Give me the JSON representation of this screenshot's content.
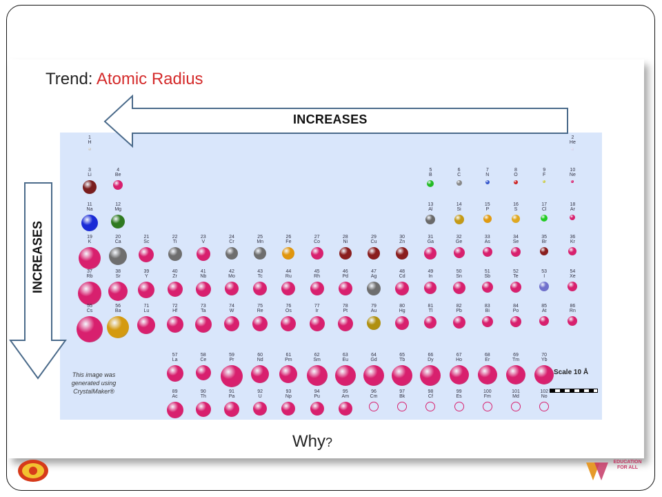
{
  "slide": {
    "title_prefix": "Trend: ",
    "title_accent": "Atomic Radius",
    "horizontal_arrow_label": "INCREASES",
    "vertical_arrow_label": "INCREASES",
    "credit": "This image was generated using CrystalMaker®",
    "scale_label": "Scale 10 Å",
    "question": "Why",
    "question_mark": "?"
  },
  "colors": {
    "magenta": "#d8206e",
    "title_accent": "#d42a2a",
    "table_bg": "#d9e6fb"
  },
  "elements": [
    {
      "n": "1",
      "s": "H",
      "p": 1,
      "g": 1,
      "r": 2,
      "c": "#cfcfcf"
    },
    {
      "n": "2",
      "s": "He",
      "p": 1,
      "g": 18,
      "r": 2,
      "c": "#d8d8f0"
    },
    {
      "n": "3",
      "s": "Li",
      "p": 2,
      "g": 1,
      "r": 10,
      "c": "#7a1e1e"
    },
    {
      "n": "4",
      "s": "Be",
      "p": 2,
      "g": 2,
      "r": 7,
      "c": "#d8206e"
    },
    {
      "n": "5",
      "s": "B",
      "p": 2,
      "g": 13,
      "r": 5,
      "c": "#22bb22"
    },
    {
      "n": "6",
      "s": "C",
      "p": 2,
      "g": 14,
      "r": 4,
      "c": "#888888"
    },
    {
      "n": "7",
      "s": "N",
      "p": 2,
      "g": 15,
      "r": 3,
      "c": "#3355cc"
    },
    {
      "n": "8",
      "s": "O",
      "p": 2,
      "g": 16,
      "r": 3,
      "c": "#cc2222"
    },
    {
      "n": "9",
      "s": "F",
      "p": 2,
      "g": 17,
      "r": 2,
      "c": "#cccc44"
    },
    {
      "n": "10",
      "s": "Ne",
      "p": 2,
      "g": 18,
      "r": 2,
      "c": "#d8206e"
    },
    {
      "n": "11",
      "s": "Na",
      "p": 3,
      "g": 1,
      "r": 12,
      "c": "#1a2bd6"
    },
    {
      "n": "12",
      "s": "Mg",
      "p": 3,
      "g": 2,
      "r": 10,
      "c": "#2f7a20"
    },
    {
      "n": "13",
      "s": "Al",
      "p": 3,
      "g": 13,
      "r": 7,
      "c": "#6a6a6a"
    },
    {
      "n": "14",
      "s": "Si",
      "p": 3,
      "g": 14,
      "r": 7,
      "c": "#c49a16"
    },
    {
      "n": "15",
      "s": "P",
      "p": 3,
      "g": 15,
      "r": 6,
      "c": "#e09a10"
    },
    {
      "n": "16",
      "s": "S",
      "p": 3,
      "g": 16,
      "r": 6,
      "c": "#e0a820"
    },
    {
      "n": "17",
      "s": "Cl",
      "p": 3,
      "g": 17,
      "r": 5,
      "c": "#22cc22"
    },
    {
      "n": "18",
      "s": "Ar",
      "p": 3,
      "g": 18,
      "r": 4,
      "c": "#d8206e"
    },
    {
      "n": "19",
      "s": "K",
      "p": 4,
      "g": 1,
      "r": 16,
      "c": "#d8206e"
    },
    {
      "n": "20",
      "s": "Ca",
      "p": 4,
      "g": 2,
      "r": 13,
      "c": "#6e6e6e"
    },
    {
      "n": "21",
      "s": "Sc",
      "p": 4,
      "g": 3,
      "r": 11,
      "c": "#d8206e"
    },
    {
      "n": "22",
      "s": "Ti",
      "p": 4,
      "g": 4,
      "r": 10,
      "c": "#6e6e6e"
    },
    {
      "n": "23",
      "s": "V",
      "p": 4,
      "g": 5,
      "r": 10,
      "c": "#d8206e"
    },
    {
      "n": "24",
      "s": "Cr",
      "p": 4,
      "g": 6,
      "r": 9,
      "c": "#6e6e6e"
    },
    {
      "n": "25",
      "s": "Mn",
      "p": 4,
      "g": 7,
      "r": 9,
      "c": "#6e6e6e"
    },
    {
      "n": "26",
      "s": "Fe",
      "p": 4,
      "g": 8,
      "r": 9,
      "c": "#e0960e"
    },
    {
      "n": "27",
      "s": "Co",
      "p": 4,
      "g": 9,
      "r": 9,
      "c": "#d8206e"
    },
    {
      "n": "28",
      "s": "Ni",
      "p": 4,
      "g": 10,
      "r": 9,
      "c": "#8a1e1e"
    },
    {
      "n": "29",
      "s": "Cu",
      "p": 4,
      "g": 11,
      "r": 9,
      "c": "#8a1e1e"
    },
    {
      "n": "30",
      "s": "Zn",
      "p": 4,
      "g": 12,
      "r": 9,
      "c": "#8a1e1e"
    },
    {
      "n": "31",
      "s": "Ga",
      "p": 4,
      "g": 13,
      "r": 9,
      "c": "#d8206e"
    },
    {
      "n": "32",
      "s": "Ge",
      "p": 4,
      "g": 14,
      "r": 8,
      "c": "#d8206e"
    },
    {
      "n": "33",
      "s": "As",
      "p": 4,
      "g": 15,
      "r": 7,
      "c": "#d8206e"
    },
    {
      "n": "34",
      "s": "Se",
      "p": 4,
      "g": 16,
      "r": 7,
      "c": "#d8206e"
    },
    {
      "n": "35",
      "s": "Br",
      "p": 4,
      "g": 17,
      "r": 6,
      "c": "#8a1e1e"
    },
    {
      "n": "36",
      "s": "Kr",
      "p": 4,
      "g": 18,
      "r": 6,
      "c": "#d8206e"
    },
    {
      "n": "37",
      "s": "Rb",
      "p": 5,
      "g": 1,
      "r": 17,
      "c": "#d8206e"
    },
    {
      "n": "38",
      "s": "Sr",
      "p": 5,
      "g": 2,
      "r": 14,
      "c": "#d8206e"
    },
    {
      "n": "39",
      "s": "Y",
      "p": 5,
      "g": 3,
      "r": 12,
      "c": "#d8206e"
    },
    {
      "n": "40",
      "s": "Zr",
      "p": 5,
      "g": 4,
      "r": 11,
      "c": "#d8206e"
    },
    {
      "n": "41",
      "s": "Nb",
      "p": 5,
      "g": 5,
      "r": 11,
      "c": "#d8206e"
    },
    {
      "n": "42",
      "s": "Mo",
      "p": 5,
      "g": 6,
      "r": 10,
      "c": "#d8206e"
    },
    {
      "n": "43",
      "s": "Tc",
      "p": 5,
      "g": 7,
      "r": 10,
      "c": "#d8206e"
    },
    {
      "n": "44",
      "s": "Ru",
      "p": 5,
      "g": 8,
      "r": 10,
      "c": "#d8206e"
    },
    {
      "n": "45",
      "s": "Rh",
      "p": 5,
      "g": 9,
      "r": 10,
      "c": "#d8206e"
    },
    {
      "n": "46",
      "s": "Pd",
      "p": 5,
      "g": 10,
      "r": 10,
      "c": "#d8206e"
    },
    {
      "n": "47",
      "s": "Ag",
      "p": 5,
      "g": 11,
      "r": 10,
      "c": "#6e6e6e"
    },
    {
      "n": "48",
      "s": "Cd",
      "p": 5,
      "g": 12,
      "r": 10,
      "c": "#d8206e"
    },
    {
      "n": "49",
      "s": "In",
      "p": 5,
      "g": 13,
      "r": 9,
      "c": "#d8206e"
    },
    {
      "n": "50",
      "s": "Sn",
      "p": 5,
      "g": 14,
      "r": 9,
      "c": "#d8206e"
    },
    {
      "n": "51",
      "s": "Sb",
      "p": 5,
      "g": 15,
      "r": 8,
      "c": "#d8206e"
    },
    {
      "n": "52",
      "s": "Te",
      "p": 5,
      "g": 16,
      "r": 8,
      "c": "#d8206e"
    },
    {
      "n": "53",
      "s": "I",
      "p": 5,
      "g": 17,
      "r": 7,
      "c": "#7070cc"
    },
    {
      "n": "54",
      "s": "Xe",
      "p": 5,
      "g": 18,
      "r": 7,
      "c": "#d8206e"
    },
    {
      "n": "55",
      "s": "Cs",
      "p": 6,
      "g": 1,
      "r": 19,
      "c": "#d8206e"
    },
    {
      "n": "56",
      "s": "Ba",
      "p": 6,
      "g": 2,
      "r": 16,
      "c": "#d49a10"
    },
    {
      "n": "71",
      "s": "Lu",
      "p": 6,
      "g": 3,
      "r": 13,
      "c": "#d8206e"
    },
    {
      "n": "72",
      "s": "Hf",
      "p": 6,
      "g": 4,
      "r": 12,
      "c": "#d8206e"
    },
    {
      "n": "73",
      "s": "Ta",
      "p": 6,
      "g": 5,
      "r": 12,
      "c": "#d8206e"
    },
    {
      "n": "74",
      "s": "W",
      "p": 6,
      "g": 6,
      "r": 11,
      "c": "#d8206e"
    },
    {
      "n": "75",
      "s": "Re",
      "p": 6,
      "g": 7,
      "r": 11,
      "c": "#d8206e"
    },
    {
      "n": "76",
      "s": "Os",
      "p": 6,
      "g": 8,
      "r": 11,
      "c": "#d8206e"
    },
    {
      "n": "77",
      "s": "Ir",
      "p": 6,
      "g": 9,
      "r": 11,
      "c": "#d8206e"
    },
    {
      "n": "78",
      "s": "Pt",
      "p": 6,
      "g": 10,
      "r": 11,
      "c": "#d8206e"
    },
    {
      "n": "79",
      "s": "Au",
      "p": 6,
      "g": 11,
      "r": 10,
      "c": "#b09010"
    },
    {
      "n": "80",
      "s": "Hg",
      "p": 6,
      "g": 12,
      "r": 10,
      "c": "#d8206e"
    },
    {
      "n": "81",
      "s": "Tl",
      "p": 6,
      "g": 13,
      "r": 9,
      "c": "#d8206e"
    },
    {
      "n": "82",
      "s": "Pb",
      "p": 6,
      "g": 14,
      "r": 9,
      "c": "#d8206e"
    },
    {
      "n": "83",
      "s": "Bi",
      "p": 6,
      "g": 15,
      "r": 8,
      "c": "#d8206e"
    },
    {
      "n": "84",
      "s": "Po",
      "p": 6,
      "g": 16,
      "r": 8,
      "c": "#d8206e"
    },
    {
      "n": "85",
      "s": "At",
      "p": 6,
      "g": 17,
      "r": 7,
      "c": "#d8206e"
    },
    {
      "n": "86",
      "s": "Rn",
      "p": 6,
      "g": 18,
      "r": 7,
      "c": "#d8206e"
    },
    {
      "n": "57",
      "s": "La",
      "p": 8,
      "g": 4,
      "r": 12,
      "c": "#d8206e"
    },
    {
      "n": "58",
      "s": "Ce",
      "p": 8,
      "g": 5,
      "r": 11,
      "c": "#d8206e"
    },
    {
      "n": "59",
      "s": "Pr",
      "p": 8,
      "g": 6,
      "r": 16,
      "c": "#d8206e"
    },
    {
      "n": "60",
      "s": "Nd",
      "p": 8,
      "g": 7,
      "r": 13,
      "c": "#d8206e"
    },
    {
      "n": "61",
      "s": "Pm",
      "p": 8,
      "g": 8,
      "r": 13,
      "c": "#d8206e"
    },
    {
      "n": "62",
      "s": "Sm",
      "p": 8,
      "g": 9,
      "r": 15,
      "c": "#d8206e"
    },
    {
      "n": "63",
      "s": "Eu",
      "p": 8,
      "g": 10,
      "r": 15,
      "c": "#d8206e"
    },
    {
      "n": "64",
      "s": "Gd",
      "p": 8,
      "g": 11,
      "r": 15,
      "c": "#d8206e"
    },
    {
      "n": "65",
      "s": "Tb",
      "p": 8,
      "g": 12,
      "r": 15,
      "c": "#d8206e"
    },
    {
      "n": "66",
      "s": "Dy",
      "p": 8,
      "g": 13,
      "r": 15,
      "c": "#d8206e"
    },
    {
      "n": "67",
      "s": "Ho",
      "p": 8,
      "g": 14,
      "r": 14,
      "c": "#d8206e"
    },
    {
      "n": "68",
      "s": "Er",
      "p": 8,
      "g": 15,
      "r": 14,
      "c": "#d8206e"
    },
    {
      "n": "69",
      "s": "Tm",
      "p": 8,
      "g": 16,
      "r": 14,
      "c": "#d8206e"
    },
    {
      "n": "70",
      "s": "Yb",
      "p": 8,
      "g": 17,
      "r": 14,
      "c": "#d8206e"
    },
    {
      "n": "89",
      "s": "Ac",
      "p": 9,
      "g": 4,
      "r": 12,
      "c": "#d8206e"
    },
    {
      "n": "90",
      "s": "Th",
      "p": 9,
      "g": 5,
      "r": 11,
      "c": "#d8206e"
    },
    {
      "n": "91",
      "s": "Pa",
      "p": 9,
      "g": 6,
      "r": 11,
      "c": "#d8206e"
    },
    {
      "n": "92",
      "s": "U",
      "p": 9,
      "g": 7,
      "r": 10,
      "c": "#d8206e"
    },
    {
      "n": "93",
      "s": "Np",
      "p": 9,
      "g": 8,
      "r": 10,
      "c": "#d8206e"
    },
    {
      "n": "94",
      "s": "Pu",
      "p": 9,
      "g": 9,
      "r": 10,
      "c": "#d8206e"
    },
    {
      "n": "95",
      "s": "Am",
      "p": 9,
      "g": 10,
      "r": 10,
      "c": "#d8206e"
    },
    {
      "n": "96",
      "s": "Cm",
      "p": 9,
      "g": 11,
      "r": 7,
      "c": "none"
    },
    {
      "n": "97",
      "s": "Bk",
      "p": 9,
      "g": 12,
      "r": 7,
      "c": "none"
    },
    {
      "n": "98",
      "s": "Cf",
      "p": 9,
      "g": 13,
      "r": 7,
      "c": "none"
    },
    {
      "n": "99",
      "s": "Es",
      "p": 9,
      "g": 14,
      "r": 7,
      "c": "none"
    },
    {
      "n": "100",
      "s": "Fm",
      "p": 9,
      "g": 15,
      "r": 7,
      "c": "none"
    },
    {
      "n": "101",
      "s": "Md",
      "p": 9,
      "g": 16,
      "r": 7,
      "c": "none"
    },
    {
      "n": "102",
      "s": "No",
      "p": 9,
      "g": 17,
      "r": 7,
      "c": "none"
    }
  ]
}
